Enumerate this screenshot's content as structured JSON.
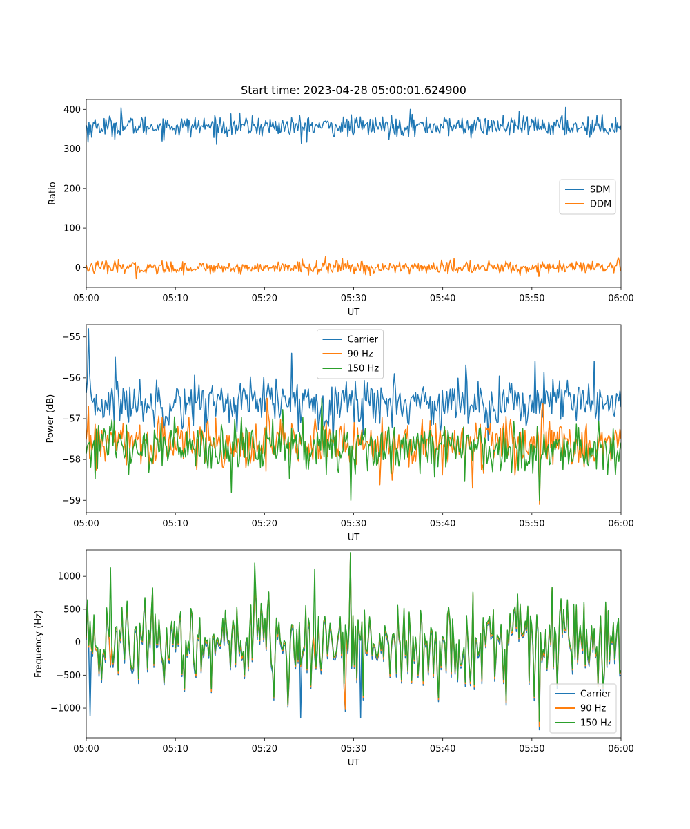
{
  "figure": {
    "title": "Start time: 2023-04-28 05:00:01.624900"
  },
  "chart_data": [
    {
      "type": "line",
      "id": "ratio",
      "xlabel": "UT",
      "ylabel": "Ratio",
      "x_ticks": [
        "05:00",
        "05:10",
        "05:20",
        "05:30",
        "05:40",
        "05:50",
        "06:00"
      ],
      "xlim_minutes": [
        0,
        60
      ],
      "ylim": [
        -50,
        425
      ],
      "y_ticks": [
        0,
        100,
        200,
        300,
        400
      ],
      "y_tick_labels": [
        "0",
        "100",
        "200",
        "300",
        "400"
      ],
      "legend": "center-right",
      "grid": false,
      "points_per_series": 600,
      "series": [
        {
          "name": "SDM",
          "color": "#1f77b4",
          "mean": 357,
          "noise": 13,
          "spikes": [
            [
              3.9,
              404
            ],
            [
              36.4,
              400
            ],
            [
              53.8,
              405
            ],
            [
              24.1,
              314
            ],
            [
              0.2,
              317
            ]
          ]
        },
        {
          "name": "DDM",
          "color": "#ff7f0e",
          "mean": 0,
          "noise": 8,
          "spikes": [
            [
              26.8,
              28
            ],
            [
              59.7,
              25
            ],
            [
              5.6,
              -28
            ],
            [
              31.9,
              -20
            ]
          ]
        }
      ]
    },
    {
      "type": "line",
      "id": "power",
      "xlabel": "UT",
      "ylabel": "Power (dB)",
      "x_ticks": [
        "05:00",
        "05:10",
        "05:20",
        "05:30",
        "05:40",
        "05:50",
        "06:00"
      ],
      "xlim_minutes": [
        0,
        60
      ],
      "ylim": [
        -59.3,
        -54.7
      ],
      "y_ticks": [
        -59,
        -58,
        -57,
        -56,
        -55
      ],
      "y_tick_labels": [
        "−59",
        "−58",
        "−57",
        "−56",
        "−55"
      ],
      "legend": "upper-center",
      "grid": false,
      "points_per_series": 480,
      "series": [
        {
          "name": "Carrier",
          "color": "#1f77b4",
          "mean": -56.6,
          "noise": 0.3,
          "spikes": [
            [
              0.2,
              -54.8
            ],
            [
              3.2,
              -55.5
            ],
            [
              23.0,
              -55.4
            ],
            [
              34.6,
              -55.9
            ],
            [
              57.0,
              -55.6
            ],
            [
              50.3,
              -55.6
            ]
          ]
        },
        {
          "name": "90 Hz",
          "color": "#ff7f0e",
          "mean": -57.6,
          "noise": 0.3,
          "spikes": [
            [
              0.3,
              -56.7
            ],
            [
              20.3,
              -56.5
            ],
            [
              50.9,
              -59.1
            ],
            [
              43.4,
              -58.7
            ]
          ]
        },
        {
          "name": "150 Hz",
          "color": "#2ca02c",
          "mean": -57.7,
          "noise": 0.32,
          "spikes": [
            [
              26.4,
              -56.5
            ],
            [
              29.7,
              -59.0
            ],
            [
              16.3,
              -58.8
            ],
            [
              50.9,
              -59.0
            ]
          ]
        }
      ]
    },
    {
      "type": "line",
      "id": "frequency",
      "xlabel": "UT",
      "ylabel": "Frequency (Hz)",
      "x_ticks": [
        "05:00",
        "05:10",
        "05:20",
        "05:30",
        "05:40",
        "05:50",
        "06:00"
      ],
      "xlim_minutes": [
        0,
        60
      ],
      "ylim": [
        -1450,
        1400
      ],
      "y_ticks": [
        -1000,
        -500,
        0,
        500,
        1000
      ],
      "y_tick_labels": [
        "−1000",
        "−500",
        "0",
        "500",
        "1000"
      ],
      "legend": "lower-right",
      "grid": false,
      "points_per_series": 420,
      "series": [
        {
          "name": "Carrier",
          "color": "#1f77b4",
          "offset": -60,
          "spikes": [
            [
              29.6,
              1340
            ],
            [
              29.1,
              -1050
            ],
            [
              30.8,
              -1150
            ],
            [
              50.9,
              -1330
            ],
            [
              0.4,
              -1120
            ],
            [
              24.0,
              -1150
            ]
          ]
        },
        {
          "name": "90 Hz",
          "color": "#ff7f0e",
          "offset": -25,
          "spikes": [
            [
              29.6,
              1350
            ],
            [
              29.1,
              -1020
            ],
            [
              50.9,
              -1280
            ]
          ]
        },
        {
          "name": "150 Hz",
          "color": "#2ca02c",
          "offset": 0,
          "spikes": [
            [
              29.6,
              1360
            ],
            [
              2.7,
              1130
            ],
            [
              18.9,
              1200
            ],
            [
              25.7,
              1110
            ],
            [
              50.9,
              -1200
            ]
          ]
        }
      ]
    }
  ]
}
